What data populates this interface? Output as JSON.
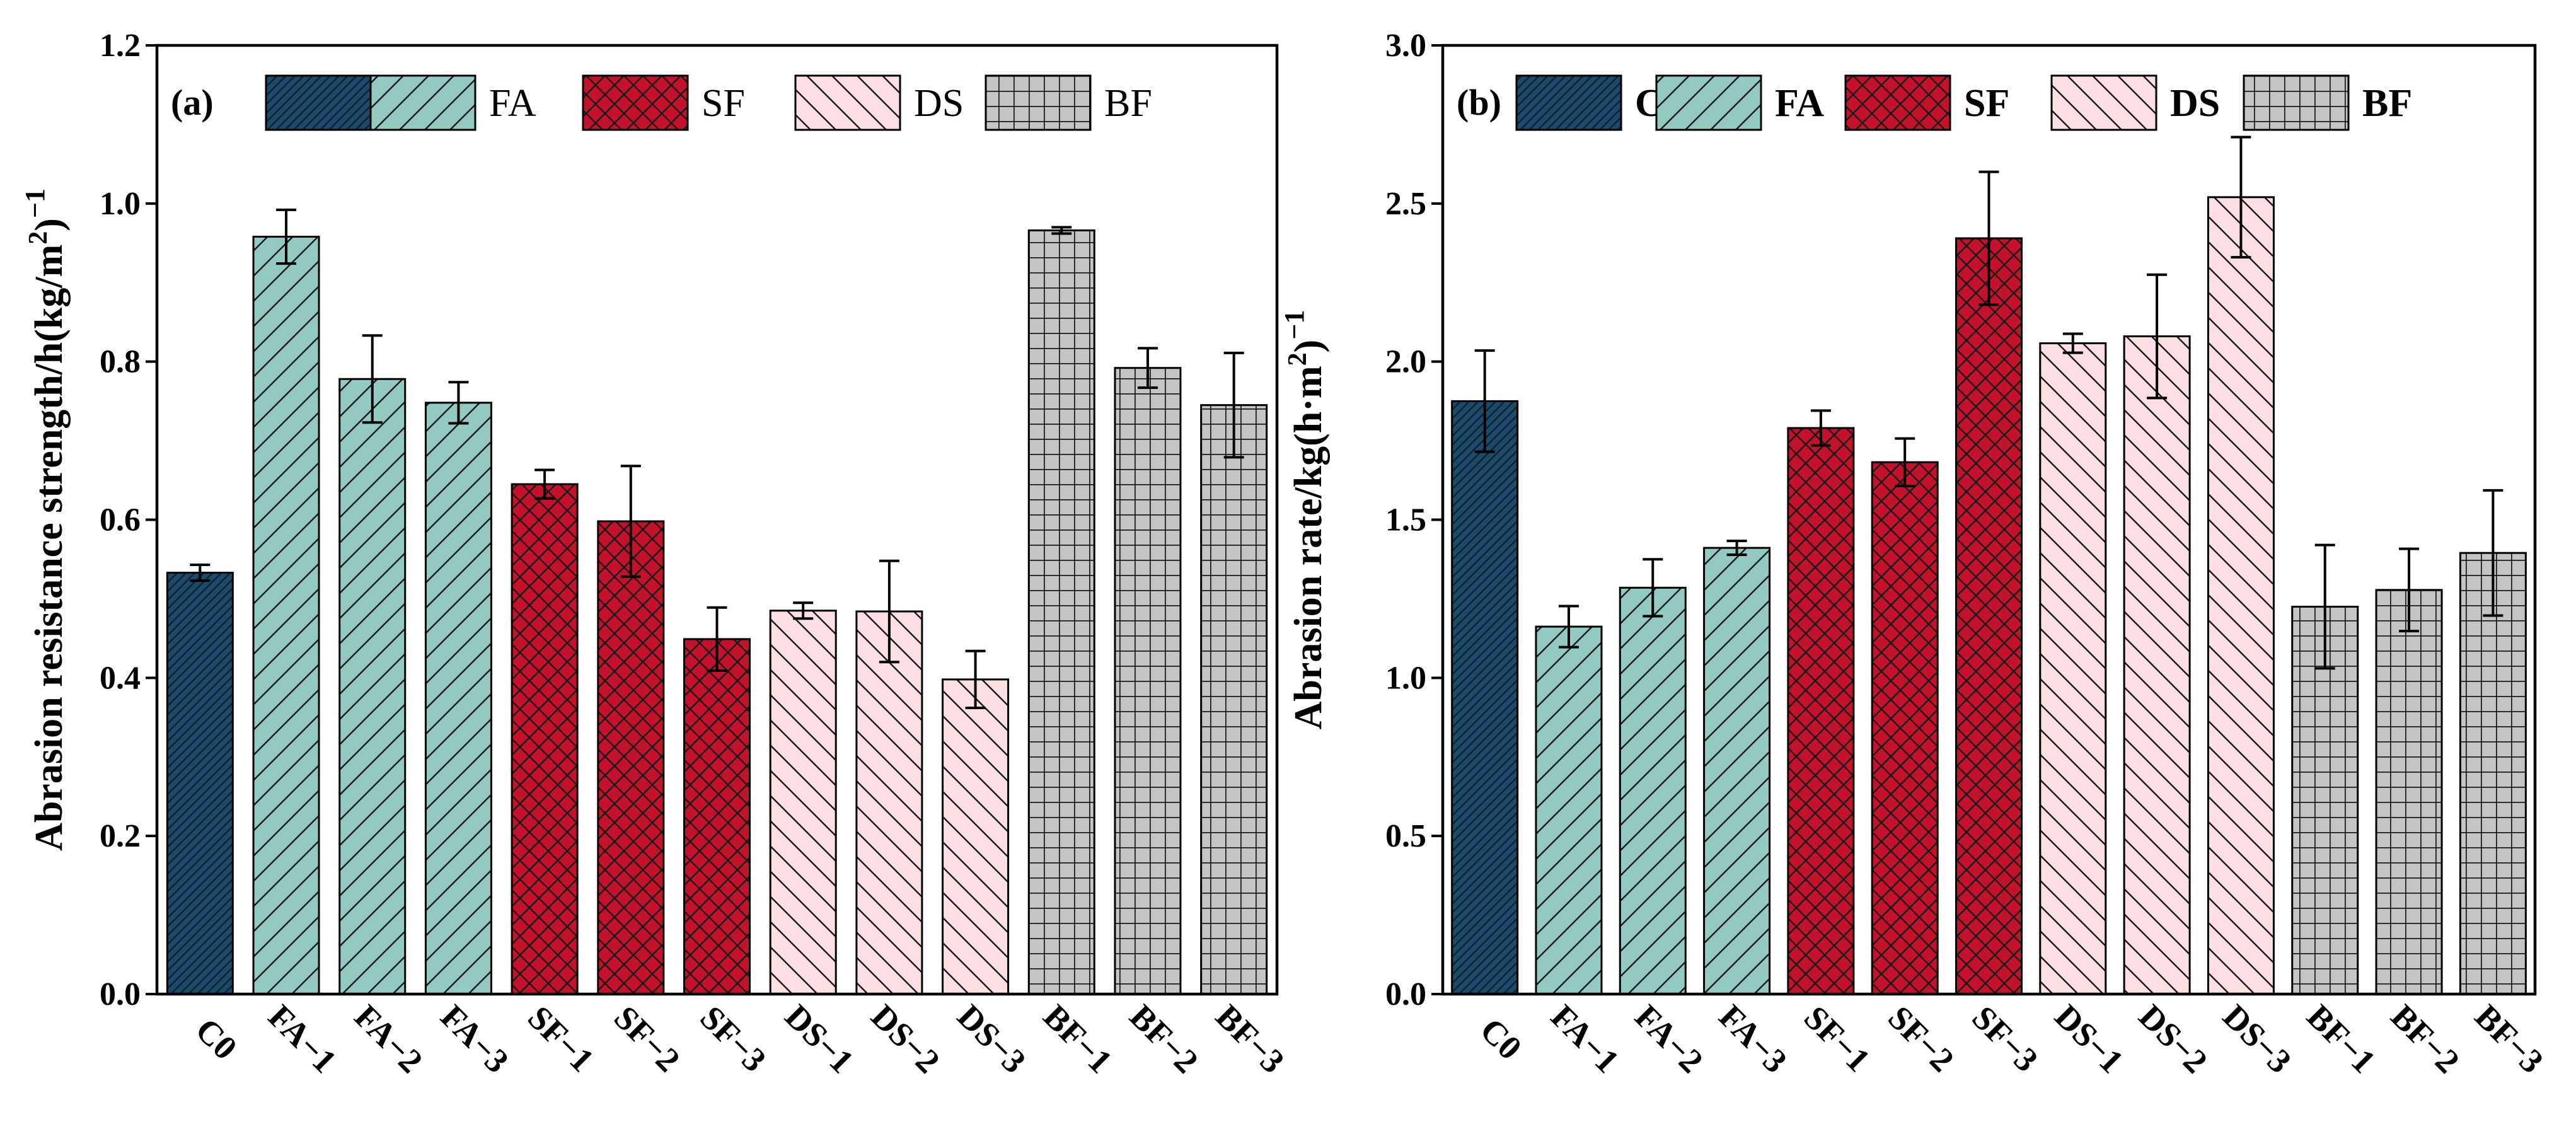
{
  "chart_data": [
    {
      "type": "bar",
      "panel_label": "(a)",
      "ylabel": "Abrasion resistance strength/h(kg/m²)⁻¹",
      "ylabel_parts": [
        "Abrasion resistance strength/h(kg/m",
        "2",
        ")",
        "−1"
      ],
      "ylim": [
        0,
        1.2
      ],
      "yticks": [
        "0.0",
        "0.2",
        "0.4",
        "0.6",
        "0.8",
        "1.0",
        "1.2"
      ],
      "legend_bold": false,
      "categories": [
        "C0",
        "FA−1",
        "FA−2",
        "FA−3",
        "SF−1",
        "SF−2",
        "SF−3",
        "DS−1",
        "DS−2",
        "DS−3",
        "BF−1",
        "BF−2",
        "BF−3"
      ],
      "groups": [
        "C",
        "FA",
        "FA",
        "FA",
        "SF",
        "SF",
        "SF",
        "DS",
        "DS",
        "DS",
        "BF",
        "BF",
        "BF"
      ],
      "values": [
        0.533,
        0.958,
        0.778,
        0.748,
        0.645,
        0.598,
        0.449,
        0.485,
        0.484,
        0.398,
        0.966,
        0.792,
        0.745
      ],
      "errors": [
        0.01,
        0.034,
        0.055,
        0.026,
        0.018,
        0.07,
        0.04,
        0.01,
        0.064,
        0.036,
        0.004,
        0.025,
        0.066
      ]
    },
    {
      "type": "bar",
      "panel_label": "(b)",
      "ylabel": "Abrasion rate/kg(h·m²)⁻¹",
      "ylabel_parts": [
        "Abrasion rate/kg(h·m",
        "2",
        ")",
        "−1"
      ],
      "ylim": [
        0,
        3.0
      ],
      "yticks": [
        "0.0",
        "0.5",
        "1.0",
        "1.5",
        "2.0",
        "2.5",
        "3.0"
      ],
      "legend_bold": true,
      "categories": [
        "C0",
        "FA−1",
        "FA−2",
        "FA−3",
        "SF−1",
        "SF−2",
        "SF−3",
        "DS−1",
        "DS−2",
        "DS−3",
        "BF−1",
        "BF−2",
        "BF−3"
      ],
      "groups": [
        "C",
        "FA",
        "FA",
        "FA",
        "SF",
        "SF",
        "SF",
        "DS",
        "DS",
        "DS",
        "BF",
        "BF",
        "BF"
      ],
      "values": [
        1.875,
        1.162,
        1.285,
        1.411,
        1.79,
        1.682,
        2.39,
        2.058,
        2.08,
        2.52,
        1.225,
        1.278,
        1.395
      ],
      "errors": [
        0.16,
        0.065,
        0.09,
        0.022,
        0.055,
        0.075,
        0.21,
        0.03,
        0.195,
        0.19,
        0.195,
        0.13,
        0.198
      ]
    }
  ],
  "legend": [
    {
      "key": "C",
      "label": "C"
    },
    {
      "key": "FA",
      "label": "FA"
    },
    {
      "key": "SF",
      "label": "SF"
    },
    {
      "key": "DS",
      "label": "DS"
    },
    {
      "key": "BF",
      "label": "BF"
    }
  ],
  "colors": {
    "C": "#1b4a6b",
    "FA": "#93cbc2",
    "SF": "#c4122c",
    "DS": "#fbdfe2",
    "BF": "#c4c4c4"
  }
}
